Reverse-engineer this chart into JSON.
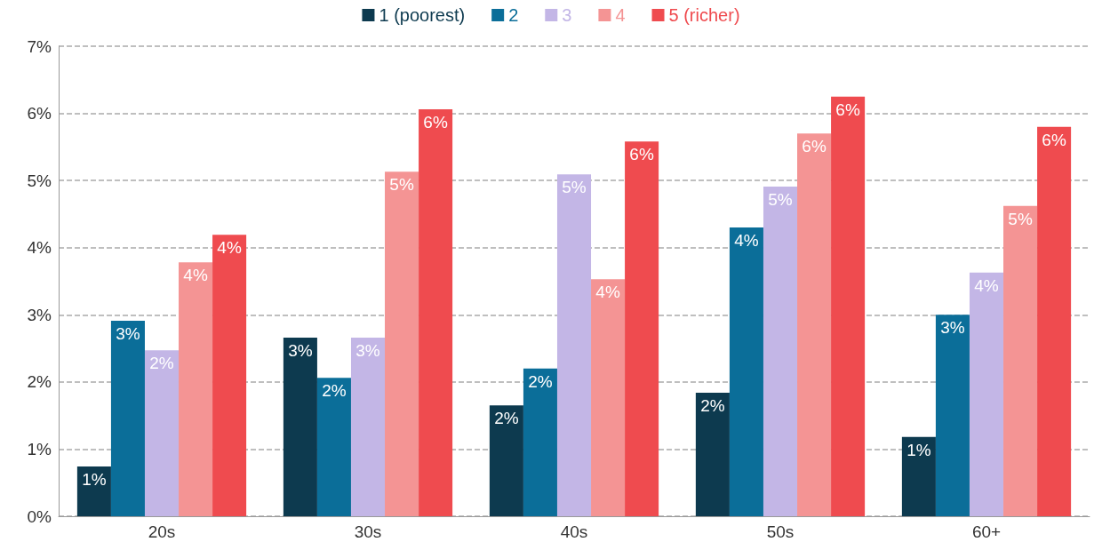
{
  "chart_data": {
    "type": "bar",
    "categories": [
      "20s",
      "30s",
      "40s",
      "50s",
      "60+"
    ],
    "series": [
      {
        "name": "1 (poorest)",
        "color": "#0d3a4f",
        "values": [
          0.74,
          2.66,
          1.65,
          1.84,
          1.18
        ],
        "value_labels": [
          "1%",
          "3%",
          "2%",
          "2%",
          "1%"
        ]
      },
      {
        "name": "2",
        "color": "#0b6e99",
        "values": [
          2.91,
          2.06,
          2.2,
          4.3,
          3.0
        ],
        "value_labels": [
          "3%",
          "2%",
          "2%",
          "4%",
          "3%"
        ]
      },
      {
        "name": "3",
        "color": "#c3b6e6",
        "values": [
          2.47,
          2.66,
          5.09,
          4.91,
          3.63
        ],
        "value_labels": [
          "2%",
          "3%",
          "5%",
          "5%",
          "4%"
        ]
      },
      {
        "name": "4",
        "color": "#f49494",
        "values": [
          3.78,
          5.13,
          3.53,
          5.7,
          4.62
        ],
        "value_labels": [
          "4%",
          "5%",
          "4%",
          "6%",
          "5%"
        ]
      },
      {
        "name": "5 (richer)",
        "color": "#ef4b4f",
        "values": [
          4.19,
          6.06,
          5.58,
          6.25,
          5.8
        ],
        "value_labels": [
          "4%",
          "6%",
          "6%",
          "6%",
          "6%"
        ]
      }
    ],
    "ylim": [
      0,
      7
    ],
    "yticks": [
      {
        "value": 0,
        "label": "0%"
      },
      {
        "value": 1,
        "label": "1%"
      },
      {
        "value": 2,
        "label": "2%"
      },
      {
        "value": 3,
        "label": "3%"
      },
      {
        "value": 4,
        "label": "4%"
      },
      {
        "value": 5,
        "label": "5%"
      },
      {
        "value": 6,
        "label": "6%"
      },
      {
        "value": 7,
        "label": "7%"
      }
    ],
    "grid": "y",
    "legend": "top"
  }
}
